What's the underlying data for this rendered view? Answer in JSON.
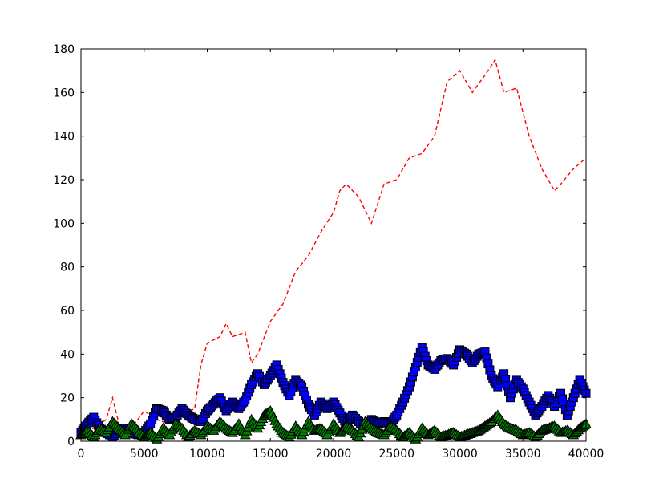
{
  "chart_data": {
    "type": "line",
    "title": "",
    "xlabel": "",
    "ylabel": "",
    "xlim": [
      0,
      40000
    ],
    "ylim": [
      0,
      180
    ],
    "grid": false,
    "x_ticks": [
      0,
      5000,
      10000,
      15000,
      20000,
      25000,
      30000,
      35000,
      40000
    ],
    "y_ticks": [
      0,
      20,
      40,
      60,
      80,
      100,
      120,
      140,
      160,
      180
    ],
    "series": [
      {
        "style": "dashed-line",
        "color": "#ff0000",
        "x": [
          0,
          1000,
          2000,
          2500,
          3000,
          4000,
          5000,
          6000,
          7000,
          8000,
          9000,
          9500,
          10000,
          11000,
          11500,
          12000,
          13000,
          13500,
          14000,
          15000,
          16000,
          17000,
          18000,
          19000,
          20000,
          20500,
          21000,
          22000,
          23000,
          24000,
          25000,
          26000,
          27000,
          28000,
          29000,
          30000,
          31000,
          32000,
          32800,
          33500,
          34500,
          35500,
          36500,
          37500,
          38000,
          39000,
          40000
        ],
        "y": [
          3,
          6,
          10,
          20,
          8,
          6,
          14,
          10,
          8,
          12,
          15,
          35,
          45,
          48,
          54,
          48,
          50,
          36,
          40,
          55,
          63,
          78,
          85,
          96,
          105,
          115,
          118,
          112,
          100,
          118,
          120,
          130,
          132,
          140,
          165,
          170,
          160,
          168,
          175,
          160,
          162,
          140,
          125,
          115,
          118,
          125,
          130
        ]
      },
      {
        "style": "square-markers",
        "color": "#0000ff",
        "x": [
          0,
          500,
          1000,
          1500,
          2000,
          2500,
          3000,
          3500,
          4000,
          4500,
          5000,
          5500,
          6000,
          6500,
          7000,
          7500,
          8000,
          8500,
          9000,
          9500,
          10000,
          10500,
          11000,
          11500,
          12000,
          12500,
          13000,
          13500,
          14000,
          14500,
          15000,
          15500,
          16000,
          16500,
          17000,
          17500,
          18000,
          18500,
          19000,
          19500,
          20000,
          20500,
          21000,
          21500,
          22000,
          22500,
          23000,
          23500,
          24000,
          24500,
          25000,
          25500,
          26000,
          26500,
          27000,
          27500,
          28000,
          28500,
          29000,
          29500,
          30000,
          30500,
          31000,
          31500,
          32000,
          32500,
          33000,
          33500,
          34000,
          34500,
          35000,
          35500,
          36000,
          36500,
          37000,
          37500,
          38000,
          38500,
          39000,
          39500,
          40000
        ],
        "y": [
          4,
          8,
          11,
          6,
          4,
          2,
          5,
          6,
          4,
          3,
          4,
          8,
          15,
          14,
          10,
          11,
          15,
          12,
          10,
          9,
          14,
          17,
          20,
          14,
          18,
          15,
          19,
          26,
          31,
          26,
          30,
          35,
          27,
          21,
          28,
          25,
          17,
          12,
          18,
          15,
          18,
          13,
          8,
          12,
          9,
          6,
          10,
          8,
          9,
          8,
          12,
          18,
          25,
          34,
          43,
          35,
          33,
          37,
          38,
          35,
          42,
          40,
          36,
          40,
          41,
          30,
          25,
          31,
          20,
          28,
          24,
          18,
          12,
          16,
          21,
          16,
          22,
          12,
          20,
          28,
          22
        ]
      },
      {
        "style": "triangle-markers",
        "color": "#007f00",
        "x": [
          0,
          500,
          1000,
          1500,
          2000,
          2500,
          3000,
          3500,
          4000,
          4500,
          5000,
          5500,
          6000,
          6500,
          7000,
          7500,
          8000,
          8500,
          9000,
          9500,
          10000,
          10500,
          11000,
          11500,
          12000,
          12500,
          13000,
          13500,
          14000,
          14500,
          15000,
          15500,
          16000,
          16500,
          17000,
          17500,
          18000,
          18500,
          19000,
          19500,
          20000,
          20500,
          21000,
          21500,
          22000,
          22500,
          23000,
          23500,
          24000,
          24500,
          25000,
          25500,
          26000,
          26500,
          27000,
          27500,
          28000,
          28500,
          29000,
          29500,
          30000,
          30500,
          31000,
          31500,
          32000,
          32500,
          33000,
          33500,
          34000,
          34500,
          35000,
          35500,
          36000,
          36500,
          37000,
          37500,
          38000,
          38500,
          39000,
          39500,
          40000
        ],
        "y": [
          3,
          5,
          2,
          6,
          4,
          9,
          6,
          3,
          8,
          5,
          2,
          4,
          1,
          6,
          3,
          8,
          6,
          2,
          5,
          3,
          7,
          5,
          9,
          6,
          4,
          8,
          3,
          10,
          6,
          12,
          14,
          8,
          4,
          2,
          7,
          3,
          9,
          5,
          6,
          3,
          8,
          4,
          7,
          5,
          2,
          9,
          6,
          4,
          3,
          7,
          5,
          2,
          4,
          1,
          6,
          3,
          5,
          2,
          3,
          4,
          2,
          3,
          4,
          5,
          7,
          9,
          12,
          8,
          6,
          5,
          3,
          4,
          2,
          5,
          6,
          7,
          4,
          5,
          3,
          6,
          8
        ]
      }
    ]
  }
}
